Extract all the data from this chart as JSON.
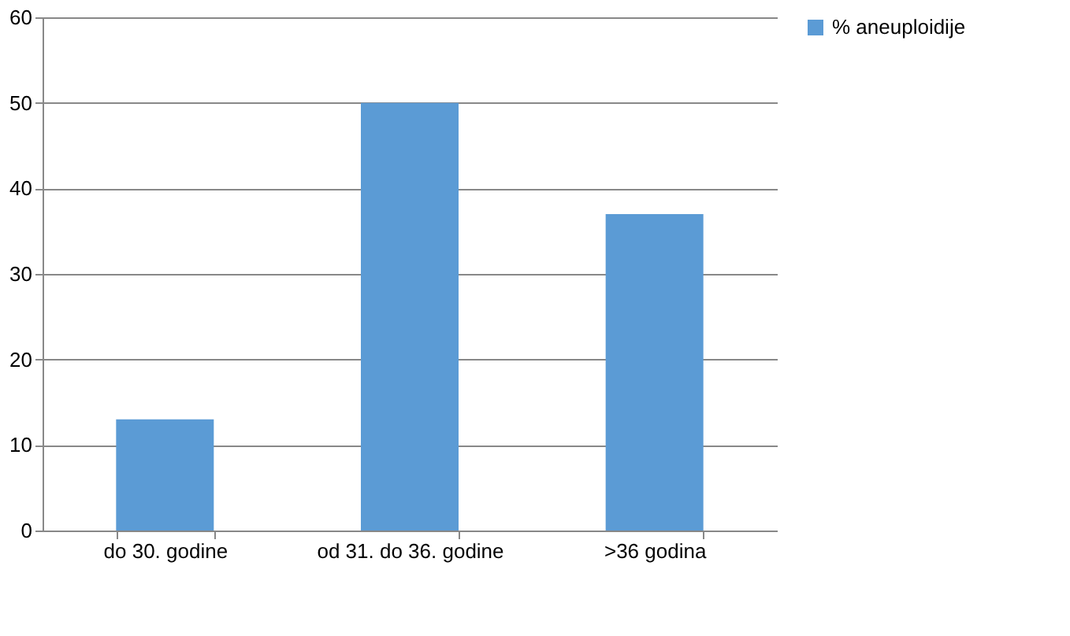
{
  "chart_data": {
    "type": "bar",
    "categories": [
      "do 30. godine",
      "od 31. do 36. godine",
      ">36 godina"
    ],
    "series": [
      {
        "name": "% aneuploidije",
        "color": "#5b9bd5",
        "values": [
          13,
          50,
          37
        ]
      }
    ],
    "ylim": [
      0,
      60
    ],
    "yticks": [
      0,
      10,
      20,
      30,
      40,
      50,
      60
    ],
    "grid": "y",
    "legend": "right"
  }
}
